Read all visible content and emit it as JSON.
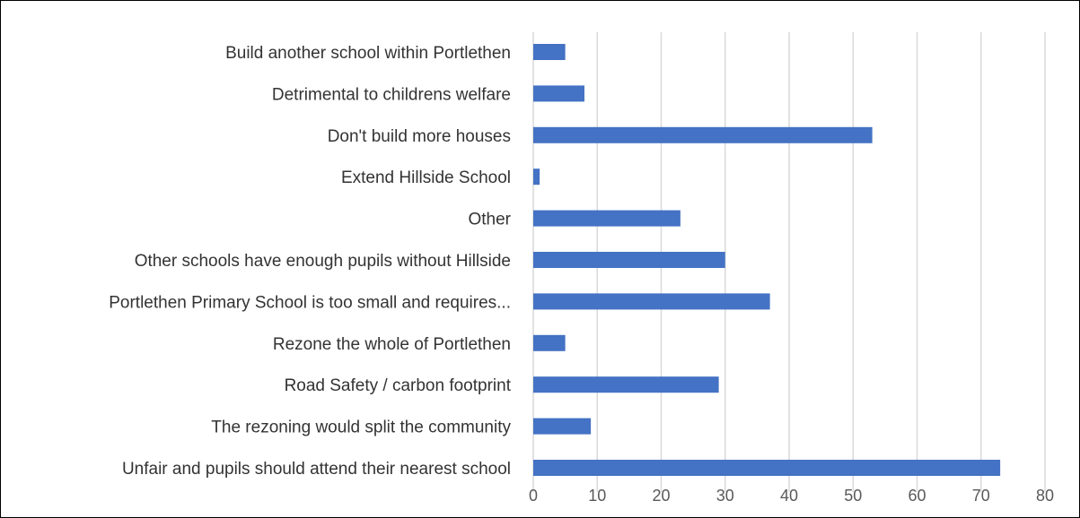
{
  "chart_data": {
    "type": "bar",
    "orientation": "horizontal",
    "categories": [
      "Build another school within Portlethen",
      "Detrimental to childrens welfare",
      "Don't build more houses",
      "Extend Hillside School",
      "Other",
      "Other schools have enough pupils without Hillside",
      "Portlethen Primary School is too small and requires...",
      "Rezone the whole of Portlethen",
      "Road Safety / carbon footprint",
      "The rezoning would split the community",
      "Unfair and pupils should attend their nearest school"
    ],
    "values": [
      5,
      8,
      53,
      1,
      23,
      30,
      37,
      5,
      29,
      9,
      73
    ],
    "xlim": [
      0,
      80
    ],
    "xticks": [
      0,
      10,
      20,
      30,
      40,
      50,
      60,
      70,
      80
    ],
    "grid": true,
    "legend": "none",
    "title": "",
    "xlabel": "",
    "ylabel": "",
    "bar_color": "#4472c4",
    "grid_color": "#d9d9d9"
  }
}
